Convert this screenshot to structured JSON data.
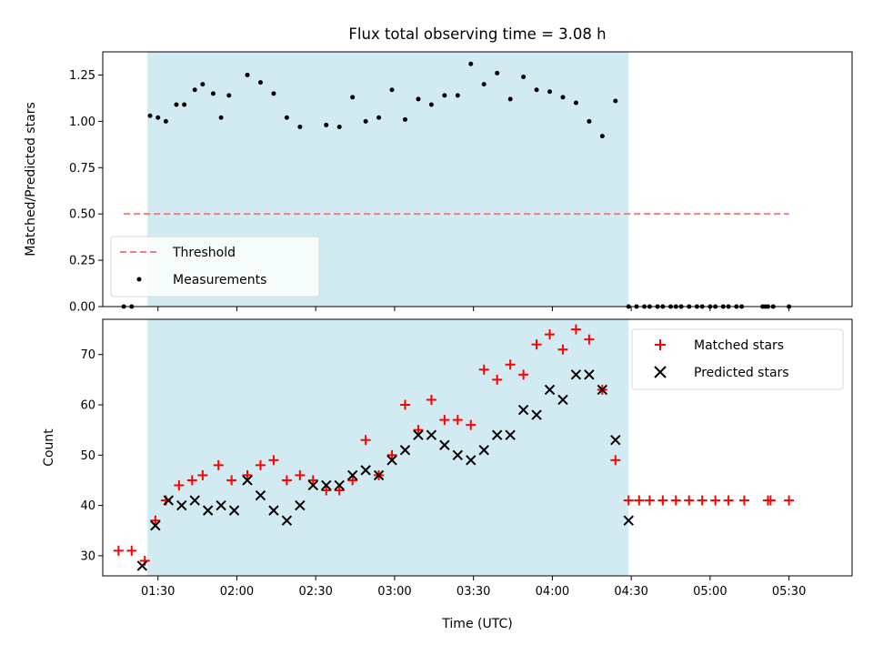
{
  "chart_data": [
    {
      "type": "scatter",
      "title": "Flux total observing time = 3.08 h",
      "xlabel": "",
      "ylabel": "Matched/Predicted stars",
      "ylim": [
        0,
        1.375
      ],
      "yticks": [
        "0.00",
        "0.25",
        "0.50",
        "0.75",
        "1.00",
        "1.25"
      ],
      "xlim_time": [
        "01:09",
        "05:54"
      ],
      "grid": false,
      "shaded_span": [
        "01:26",
        "04:29"
      ],
      "threshold": {
        "name": "Threshold",
        "y": 0.5,
        "x_start": "01:17",
        "x_end": "05:30",
        "color": "#f08080"
      },
      "legend": {
        "position": "lower-left",
        "entries": [
          "Threshold",
          "Measurements"
        ]
      },
      "series": [
        {
          "name": "Measurements",
          "color": "#000000",
          "marker": "dot",
          "x": [
            "01:17",
            "01:20",
            "01:27",
            "01:30",
            "01:33",
            "01:37",
            "01:40",
            "01:44",
            "01:47",
            "01:51",
            "01:54",
            "01:57",
            "02:04",
            "02:09",
            "02:14",
            "02:19",
            "02:24",
            "02:34",
            "02:39",
            "02:44",
            "02:49",
            "02:54",
            "02:59",
            "03:04",
            "03:09",
            "03:14",
            "03:19",
            "03:24",
            "03:29",
            "03:34",
            "03:39",
            "03:44",
            "03:49",
            "03:54",
            "03:59",
            "04:04",
            "04:09",
            "04:14",
            "04:19",
            "04:24",
            "04:29",
            "04:32",
            "04:35",
            "04:37",
            "04:40",
            "04:42",
            "04:45",
            "04:47",
            "04:49",
            "04:52",
            "04:55",
            "04:57",
            "05:00",
            "05:02",
            "05:05",
            "05:07",
            "05:10",
            "05:12",
            "05:20",
            "05:21",
            "05:22",
            "05:24",
            "05:30"
          ],
          "y": [
            0.0,
            0.0,
            1.03,
            1.02,
            1.0,
            1.09,
            1.09,
            1.17,
            1.2,
            1.15,
            1.02,
            1.14,
            1.25,
            1.21,
            1.15,
            1.02,
            0.97,
            0.98,
            0.97,
            1.13,
            1.0,
            1.02,
            1.17,
            1.01,
            1.12,
            1.09,
            1.14,
            1.14,
            1.31,
            1.2,
            1.26,
            1.12,
            1.24,
            1.17,
            1.16,
            1.13,
            1.1,
            1.0,
            0.92,
            1.11,
            0.0,
            0.0,
            0.0,
            0.0,
            0.0,
            0.0,
            0.0,
            0.0,
            0.0,
            0.0,
            0.0,
            0.0,
            0.0,
            0.0,
            0.0,
            0.0,
            0.0,
            0.0,
            0.0,
            0.0,
            0.0,
            0.0,
            0.0
          ]
        }
      ]
    },
    {
      "type": "scatter",
      "title": "",
      "xlabel": "Time (UTC)",
      "ylabel": "Count",
      "ylim": [
        26,
        77
      ],
      "yticks": [
        "30",
        "40",
        "50",
        "60",
        "70"
      ],
      "xticks": [
        "01:30",
        "02:00",
        "02:30",
        "03:00",
        "03:30",
        "04:00",
        "04:30",
        "05:00",
        "05:30"
      ],
      "xlim_time": [
        "01:09",
        "05:54"
      ],
      "grid": false,
      "shaded_span": [
        "01:26",
        "04:29"
      ],
      "legend": {
        "position": "top-right",
        "entries": [
          "Matched stars",
          "Predicted stars"
        ]
      },
      "series": [
        {
          "name": "Matched stars",
          "color": "#ff0000",
          "marker": "plus",
          "x": [
            "01:15",
            "01:20",
            "01:25",
            "01:29",
            "01:33",
            "01:38",
            "01:43",
            "01:47",
            "01:53",
            "01:58",
            "02:04",
            "02:09",
            "02:14",
            "02:19",
            "02:24",
            "02:29",
            "02:34",
            "02:39",
            "02:44",
            "02:49",
            "02:54",
            "02:59",
            "03:04",
            "03:09",
            "03:14",
            "03:19",
            "03:24",
            "03:29",
            "03:34",
            "03:39",
            "03:44",
            "03:49",
            "03:54",
            "03:59",
            "04:04",
            "04:09",
            "04:14",
            "04:19",
            "04:24",
            "04:29",
            "04:33",
            "04:37",
            "04:42",
            "04:47",
            "04:52",
            "04:57",
            "05:02",
            "05:07",
            "05:13",
            "05:22",
            "05:23",
            "05:30"
          ],
          "y": [
            31,
            31,
            29,
            37,
            41,
            44,
            45,
            46,
            48,
            45,
            46,
            48,
            49,
            45,
            46,
            45,
            43,
            43,
            45,
            53,
            46,
            50,
            60,
            55,
            61,
            57,
            57,
            56,
            67,
            65,
            68,
            66,
            72,
            74,
            71,
            75,
            73,
            63,
            49,
            41,
            41,
            41,
            41,
            41,
            41,
            41,
            41,
            41,
            41,
            41,
            41,
            41
          ]
        },
        {
          "name": "Predicted stars",
          "color": "#000000",
          "marker": "x",
          "x": [
            "01:24",
            "01:29",
            "01:34",
            "01:39",
            "01:44",
            "01:49",
            "01:54",
            "01:59",
            "02:04",
            "02:09",
            "02:14",
            "02:19",
            "02:24",
            "02:29",
            "02:34",
            "02:39",
            "02:44",
            "02:49",
            "02:54",
            "02:59",
            "03:04",
            "03:09",
            "03:14",
            "03:19",
            "03:24",
            "03:29",
            "03:34",
            "03:39",
            "03:44",
            "03:49",
            "03:54",
            "03:59",
            "04:04",
            "04:09",
            "04:14",
            "04:19",
            "04:24",
            "04:29"
          ],
          "y": [
            28,
            36,
            41,
            40,
            41,
            39,
            40,
            39,
            45,
            42,
            39,
            37,
            40,
            44,
            44,
            44,
            46,
            47,
            46,
            49,
            51,
            54,
            54,
            52,
            50,
            49,
            51,
            54,
            54,
            59,
            58,
            63,
            61,
            66,
            66,
            63,
            53,
            37
          ]
        }
      ]
    }
  ]
}
